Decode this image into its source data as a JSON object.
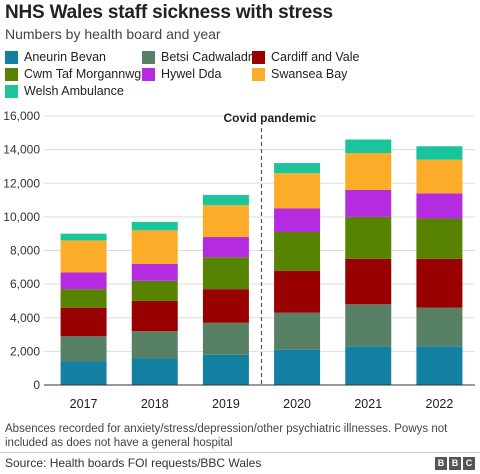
{
  "header": {
    "title": "NHS Wales staff sickness with stress",
    "subtitle": "Numbers by health board and year"
  },
  "footnote": "Absences recorded for anxiety/stress/depression/other psychiatric illnesses. Powys not included as does not have a general hospital",
  "source": "Source: Health boards FOI requests/BBC Wales",
  "logo": [
    "B",
    "B",
    "C"
  ],
  "chart_data": {
    "type": "bar",
    "stacked": true,
    "title": "NHS Wales staff sickness with stress",
    "subtitle": "Numbers by health board and year",
    "xlabel": "",
    "ylabel": "",
    "categories": [
      "2017",
      "2018",
      "2019",
      "2020",
      "2021",
      "2022"
    ],
    "ylim": [
      0,
      16000
    ],
    "yticks": [
      0,
      2000,
      4000,
      6000,
      8000,
      10000,
      12000,
      14000,
      16000
    ],
    "ytick_labels": [
      "0",
      "2,000",
      "4,000",
      "6,000",
      "8,000",
      "10,000",
      "12,000",
      "14,000",
      "16,000"
    ],
    "grid": true,
    "legend_position": "top",
    "annotation": {
      "text": "Covid pandemic",
      "between": [
        "2019",
        "2020"
      ]
    },
    "series": [
      {
        "name": "Aneurin Bevan",
        "color": "#1380a1",
        "values": [
          1400,
          1600,
          1800,
          2100,
          2300,
          2300
        ]
      },
      {
        "name": "Betsi Cadwaladr",
        "color": "#588065",
        "values": [
          1500,
          1600,
          1900,
          2200,
          2500,
          2300
        ]
      },
      {
        "name": "Cardiff and Vale",
        "color": "#990000",
        "values": [
          1700,
          1800,
          2000,
          2500,
          2700,
          2900
        ]
      },
      {
        "name": "Cwm Taf Morgannwg",
        "color": "#588300",
        "values": [
          1100,
          1200,
          1900,
          2300,
          2500,
          2400
        ]
      },
      {
        "name": "Hywel Dda",
        "color": "#b52bdf",
        "values": [
          1000,
          1000,
          1200,
          1400,
          1600,
          1500
        ]
      },
      {
        "name": "Swansea Bay",
        "color": "#fbad29",
        "values": [
          1900,
          2000,
          1900,
          2100,
          2200,
          2000
        ]
      },
      {
        "name": "Welsh Ambulance",
        "color": "#1ac59c",
        "values": [
          400,
          500,
          600,
          600,
          800,
          800
        ]
      }
    ]
  }
}
